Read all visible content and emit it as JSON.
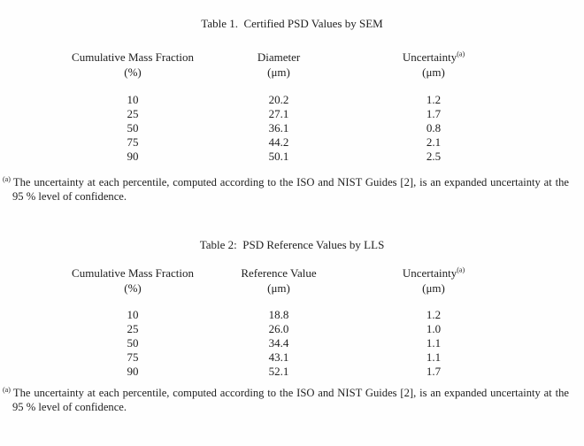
{
  "page": {
    "background_color": "#fefefe",
    "text_color": "#212121"
  },
  "tables": [
    {
      "title": "Table 1.  Certified PSD Values by SEM",
      "headers": {
        "col1": "Cumulative Mass Fraction",
        "col2": "Diameter",
        "col3": "Uncertainty",
        "col3_sup": "(a)",
        "unit1": "(%)",
        "unit2": "(μm)",
        "unit3": "(μm)"
      },
      "rows": [
        [
          "10",
          "20.2",
          "1.2"
        ],
        [
          "25",
          "27.1",
          "1.7"
        ],
        [
          "50",
          "36.1",
          "0.8"
        ],
        [
          "75",
          "44.2",
          "2.1"
        ],
        [
          "90",
          "50.1",
          "2.5"
        ]
      ],
      "footnote": {
        "marker": "(a)",
        "line1": "The uncertainty at each percentile, computed according to the ISO and NIST Guides [2], is an expanded uncertainty at the",
        "line2": "95 % level of confidence."
      }
    },
    {
      "title": "Table 2:  PSD Reference Values by LLS",
      "headers": {
        "col1": "Cumulative Mass Fraction",
        "col2": "Reference Value",
        "col3": "Uncertainty",
        "col3_sup": "(a)",
        "unit1": "(%)",
        "unit2": "(μm)",
        "unit3": "(μm)"
      },
      "rows": [
        [
          "10",
          "18.8",
          "1.2"
        ],
        [
          "25",
          "26.0",
          "1.0"
        ],
        [
          "50",
          "34.4",
          "1.1"
        ],
        [
          "75",
          "43.1",
          "1.1"
        ],
        [
          "90",
          "52.1",
          "1.7"
        ]
      ],
      "footnote": {
        "marker": "(a)",
        "line1": "The uncertainty at each percentile, computed according to the ISO and NIST Guides [2], is an expanded uncertainty at the",
        "line2": "95 % level of confidence."
      }
    }
  ]
}
